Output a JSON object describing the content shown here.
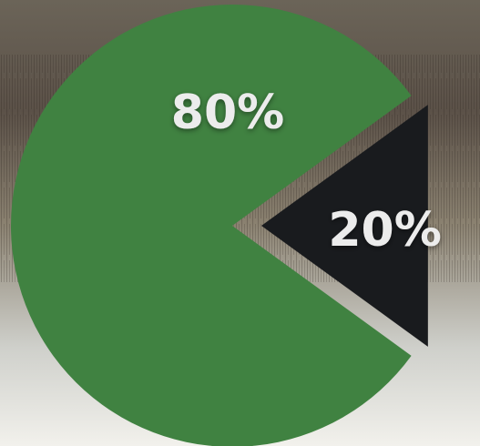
{
  "chart_data": {
    "type": "pie",
    "slices": [
      {
        "label": "80%",
        "value": 80,
        "color": "#408241"
      },
      {
        "label": "20%",
        "value": 20,
        "color": "#191b1e"
      }
    ]
  },
  "background": {
    "colors": [
      "#6b6458",
      "#5b5148",
      "#8a8170",
      "#cfd0cb",
      "#f2f1ec"
    ]
  }
}
